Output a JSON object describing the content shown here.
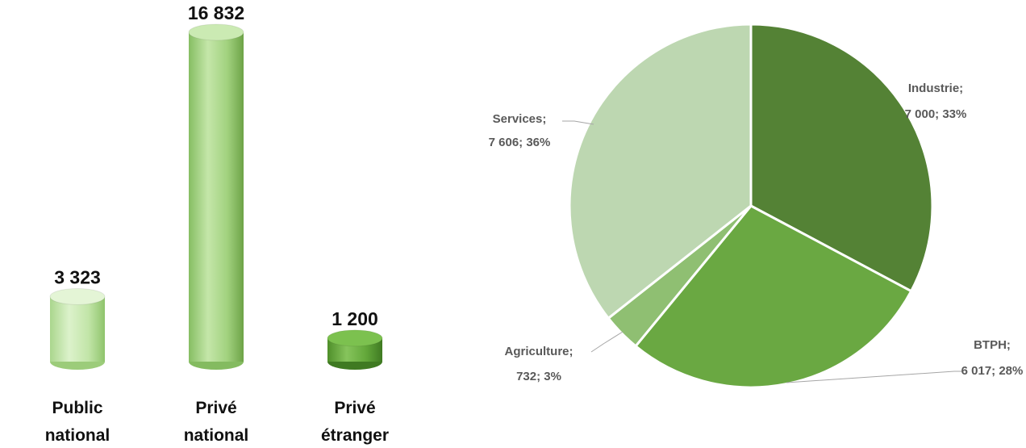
{
  "colors": {
    "bar_light": "#c9e8b2",
    "bar_mid": "#a9d58c",
    "bar_dark": "#6aad3e",
    "pie_industrie": "#548235",
    "pie_btph": "#6aa842",
    "pie_agriculture": "#8fbf72",
    "pie_services": "#bdd7b1",
    "leader_line": "#a6a6a6"
  },
  "chart_data": [
    {
      "type": "bar",
      "style": "3d-cylinder",
      "categories": [
        "Public national",
        "Privé national",
        "Privé étranger"
      ],
      "values": [
        3323,
        16832,
        1200
      ],
      "value_labels": [
        "3 323",
        "16 832",
        "1 200"
      ],
      "category_lines": [
        [
          "Public",
          "national"
        ],
        [
          "Privé",
          "national"
        ],
        [
          "Privé",
          "étranger"
        ]
      ],
      "ylim": [
        0,
        16832
      ],
      "grid": false,
      "legend": "none"
    },
    {
      "type": "pie",
      "categories": [
        "Industrie",
        "BTPH",
        "Agriculture",
        "Services"
      ],
      "values": [
        7000,
        6017,
        732,
        7606
      ],
      "percentages": [
        33,
        28,
        3,
        36
      ],
      "labels": [
        [
          "Industrie;",
          "7 000; 33%"
        ],
        [
          "BTPH;",
          "6 017; 28%"
        ],
        [
          "Agriculture;",
          "732; 3%"
        ],
        [
          "Services;",
          "7 606; 36%"
        ]
      ],
      "legend": "none"
    }
  ]
}
